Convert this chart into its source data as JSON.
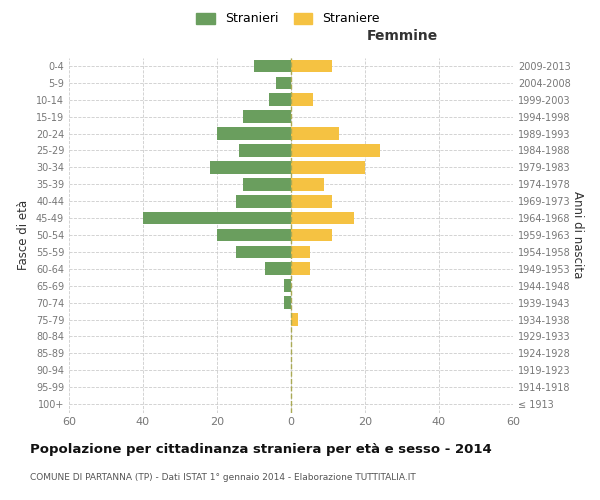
{
  "age_groups": [
    "100+",
    "95-99",
    "90-94",
    "85-89",
    "80-84",
    "75-79",
    "70-74",
    "65-69",
    "60-64",
    "55-59",
    "50-54",
    "45-49",
    "40-44",
    "35-39",
    "30-34",
    "25-29",
    "20-24",
    "15-19",
    "10-14",
    "5-9",
    "0-4"
  ],
  "birth_years": [
    "≤ 1913",
    "1914-1918",
    "1919-1923",
    "1924-1928",
    "1929-1933",
    "1934-1938",
    "1939-1943",
    "1944-1948",
    "1949-1953",
    "1954-1958",
    "1959-1963",
    "1964-1968",
    "1969-1973",
    "1974-1978",
    "1979-1983",
    "1984-1988",
    "1989-1993",
    "1994-1998",
    "1999-2003",
    "2004-2008",
    "2009-2013"
  ],
  "stranieri": [
    0,
    0,
    0,
    0,
    0,
    0,
    2,
    2,
    7,
    15,
    20,
    40,
    15,
    13,
    22,
    14,
    20,
    13,
    6,
    4,
    10
  ],
  "straniere": [
    0,
    0,
    0,
    0,
    0,
    2,
    0,
    0,
    5,
    5,
    11,
    17,
    11,
    9,
    20,
    24,
    13,
    0,
    6,
    0,
    11
  ],
  "color_stranieri": "#6a9e5e",
  "color_straniere": "#f5c242",
  "bar_height": 0.75,
  "xlim": 60,
  "title": "Popolazione per cittadinanza straniera per età e sesso - 2014",
  "subtitle": "COMUNE DI PARTANNA (TP) - Dati ISTAT 1° gennaio 2014 - Elaborazione TUTTITALIA.IT",
  "xlabel_right": "Femmine",
  "ylabel_left": "Fasce di età",
  "ylabel_right": "Anni di nascita",
  "legend_stranieri": "Stranieri",
  "legend_straniere": "Straniere",
  "bg_color": "#ffffff",
  "grid_color": "#cccccc",
  "text_color": "#777777",
  "axis_label_color": "#333333",
  "dashed_line_color": "#aaaa55"
}
